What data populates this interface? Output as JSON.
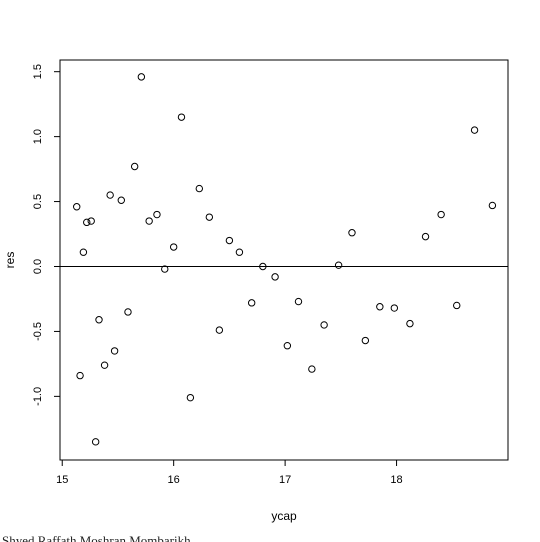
{
  "chart_data": {
    "type": "scatter",
    "title": "",
    "xlabel": "ycap",
    "ylabel": "res",
    "xlim": [
      14.98,
      19.0
    ],
    "ylim": [
      -1.49,
      1.59
    ],
    "xticks": [
      15,
      16,
      17,
      18
    ],
    "yticks": [
      -1.0,
      -0.5,
      0.0,
      0.5,
      1.0,
      1.5
    ],
    "xtick_labels": [
      "15",
      "16",
      "17",
      "18"
    ],
    "ytick_labels": [
      "-1.0",
      "-0.5",
      "0.0",
      "0.5",
      "1.0",
      "1.5"
    ],
    "hline": 0,
    "grid": false,
    "marker": "open-circle",
    "points": [
      [
        15.13,
        0.46
      ],
      [
        15.16,
        -0.84
      ],
      [
        15.19,
        0.11
      ],
      [
        15.22,
        0.34
      ],
      [
        15.26,
        0.35
      ],
      [
        15.3,
        -1.35
      ],
      [
        15.33,
        -0.41
      ],
      [
        15.38,
        -0.76
      ],
      [
        15.43,
        0.55
      ],
      [
        15.47,
        -0.65
      ],
      [
        15.53,
        0.51
      ],
      [
        15.59,
        -0.35
      ],
      [
        15.65,
        0.77
      ],
      [
        15.71,
        1.46
      ],
      [
        15.78,
        0.35
      ],
      [
        15.85,
        0.4
      ],
      [
        15.92,
        -0.02
      ],
      [
        16.0,
        0.15
      ],
      [
        16.07,
        1.15
      ],
      [
        16.15,
        -1.01
      ],
      [
        16.23,
        0.6
      ],
      [
        16.32,
        0.38
      ],
      [
        16.41,
        -0.49
      ],
      [
        16.5,
        0.2
      ],
      [
        16.59,
        0.11
      ],
      [
        16.7,
        -0.28
      ],
      [
        16.8,
        0.0
      ],
      [
        16.91,
        -0.08
      ],
      [
        17.02,
        -0.61
      ],
      [
        17.12,
        -0.27
      ],
      [
        17.24,
        -0.79
      ],
      [
        17.35,
        -0.45
      ],
      [
        17.48,
        0.01
      ],
      [
        17.6,
        0.26
      ],
      [
        17.72,
        -0.57
      ],
      [
        17.85,
        -0.31
      ],
      [
        17.98,
        -0.32
      ],
      [
        18.12,
        -0.44
      ],
      [
        18.26,
        0.23
      ],
      [
        18.4,
        0.4
      ],
      [
        18.54,
        -0.3
      ],
      [
        18.7,
        1.05
      ],
      [
        18.86,
        0.47
      ]
    ]
  },
  "footer": {
    "text": "Shyed Raffath Moshran Mombarikh"
  }
}
